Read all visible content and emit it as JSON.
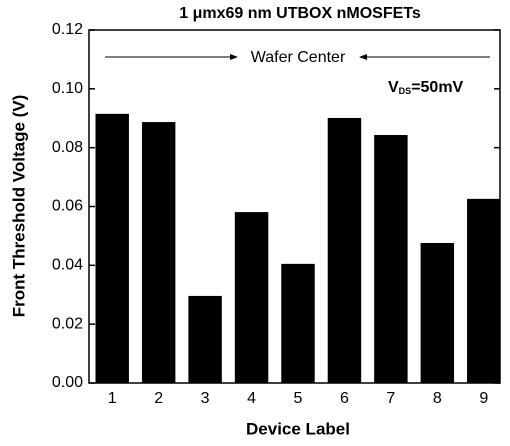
{
  "chart_data": {
    "type": "bar",
    "title": "1 μmx69 nm UTBOX nMOSFETs",
    "x_label": "Device Label",
    "y_label": "Front Threshold Voltage (V)",
    "annotations": {
      "wafer": "Wafer Center",
      "vds_main": "V",
      "vds_sub": "DS",
      "vds_rest": "=50mV"
    },
    "categories": [
      "1",
      "2",
      "3",
      "4",
      "5",
      "6",
      "7",
      "8",
      "9"
    ],
    "values": [
      0.0915,
      0.0887,
      0.0296,
      0.0581,
      0.0405,
      0.0901,
      0.0843,
      0.0476,
      0.0626
    ],
    "color": "#000000",
    "ylim": [
      0,
      0.12
    ],
    "yticks": [
      {
        "value": 0,
        "label": "0.00"
      },
      0.02,
      0.04,
      0.06,
      0.08,
      {
        "value": 0.1,
        "label": "0.10"
      },
      {
        "value": 0.12,
        "label": "0.12"
      }
    ],
    "grid": false
  }
}
